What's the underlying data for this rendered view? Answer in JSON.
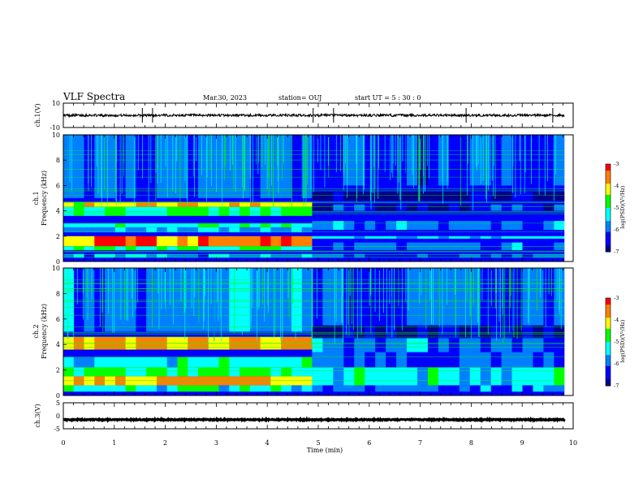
{
  "header": {
    "title": "VLF Spectra",
    "date": "Mar.30, 2023",
    "station": "station= OUJ",
    "start_ut": "start  UT =   5 : 30 : 0"
  },
  "chart_data": [
    {
      "type": "line",
      "ylabel": "ch.1(V)",
      "ylim": [
        -10,
        10
      ],
      "yticks": [
        "10",
        "-10"
      ],
      "xlim": [
        0,
        10
      ],
      "baseline": 0,
      "noise_amplitude": 1,
      "spikes_min": [
        1.55,
        1.75,
        4.9,
        5.3,
        7.9,
        9.6
      ]
    },
    {
      "type": "heatmap",
      "channel_label": "ch.1",
      "ylabel": "Frequency (kHz)",
      "ylim": [
        0,
        10
      ],
      "yticks": [
        "0",
        "2",
        "4",
        "6",
        "8",
        "10"
      ],
      "xlim": [
        0,
        10
      ],
      "colorbar": {
        "label": "log(PSD)(V²/Hz)",
        "range": [
          -7,
          -3
        ],
        "ticks": [
          "-3",
          "-4",
          "-5",
          "-6",
          "-7"
        ],
        "colors": [
          "#ff0000",
          "#ff8000",
          "#ffff00",
          "#00ff00",
          "#00ffff",
          "#0080ff",
          "#0000ff",
          "#00008b"
        ]
      },
      "segments": [
        {
          "t": [
            0,
            4.88
          ],
          "bands_khz": [
            [
              0.3,
              0.6,
              -5.8
            ],
            [
              0.9,
              1.2,
              -5.0
            ],
            [
              1.2,
              2.0,
              -3.6
            ],
            [
              2.3,
              2.7,
              -5.6
            ],
            [
              2.7,
              3.0,
              -5.0
            ],
            [
              3.6,
              4.3,
              -4.9
            ],
            [
              4.3,
              4.7,
              -4.0
            ],
            [
              5.0,
              10.0,
              -6.2
            ]
          ]
        },
        {
          "t": [
            4.88,
            9.83
          ],
          "bands_khz": [
            [
              0.3,
              0.6,
              -6.2
            ],
            [
              0.9,
              1.5,
              -6.0
            ],
            [
              1.8,
              2.0,
              -5.4
            ],
            [
              2.5,
              3.2,
              -5.9
            ],
            [
              4.0,
              4.5,
              -6.5
            ],
            [
              4.8,
              5.5,
              -6.9
            ],
            [
              6.0,
              10.0,
              -6.3
            ]
          ]
        }
      ]
    },
    {
      "type": "heatmap",
      "channel_label": "ch.2",
      "ylabel": "Frequency (kHz)",
      "ylim": [
        0,
        10
      ],
      "yticks": [
        "0",
        "2",
        "4",
        "6",
        "8",
        "10"
      ],
      "xlim": [
        0,
        10
      ],
      "colorbar": {
        "label": "log(PSD)(V²/Hz)",
        "range": [
          -7,
          -3
        ],
        "ticks": [
          "-3",
          "-4",
          "-5",
          "-6",
          "-7"
        ],
        "colors": [
          "#ff0000",
          "#ff8000",
          "#ffff00",
          "#00ff00",
          "#00ffff",
          "#0080ff",
          "#0000ff",
          "#00008b"
        ]
      },
      "segments": [
        {
          "t": [
            0,
            4.88
          ],
          "bands_khz": [
            [
              0.3,
              0.8,
              -5.2
            ],
            [
              0.8,
              1.5,
              -3.7
            ],
            [
              1.5,
              2.2,
              -4.8
            ],
            [
              2.2,
              3.0,
              -5.3
            ],
            [
              3.6,
              4.6,
              -3.9
            ],
            [
              5.0,
              10.0,
              -5.8
            ]
          ]
        },
        {
          "t": [
            4.88,
            9.83
          ],
          "bands_khz": [
            [
              0.3,
              0.8,
              -5.9
            ],
            [
              0.8,
              2.2,
              -5.3
            ],
            [
              2.2,
              3.4,
              -6.1
            ],
            [
              3.4,
              4.5,
              -5.9
            ],
            [
              4.5,
              5.5,
              -6.8
            ],
            [
              5.5,
              10.0,
              -6.1
            ]
          ]
        }
      ]
    },
    {
      "type": "line",
      "ylabel": "ch.3(V)",
      "ylim": [
        -5,
        5
      ],
      "yticks": [
        "5",
        "0",
        "-5"
      ],
      "xlim": [
        0,
        10
      ],
      "xlabel": "Time (min)",
      "xticks": [
        "0",
        "1",
        "2",
        "3",
        "4",
        "5",
        "6",
        "7",
        "8",
        "9",
        "10"
      ],
      "baseline": -1.5,
      "noise_amplitude": 0.2
    }
  ]
}
